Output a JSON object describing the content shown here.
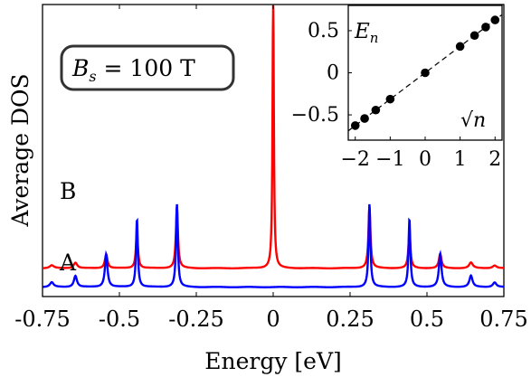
{
  "chart_data": [
    {
      "type": "line",
      "xlabel": "Energy [eV]",
      "ylabel": "Average DOS",
      "xlim": [
        -0.75,
        0.75
      ],
      "x_ticks": [
        "-0.75",
        "-0.5",
        "-0.25",
        "0",
        "0.25",
        "0.5",
        "0.75"
      ],
      "x_tick_values": [
        -0.75,
        -0.5,
        -0.25,
        0,
        0.25,
        0.5,
        0.75
      ],
      "annotation": "B_s = 100 T",
      "annotation_parts": {
        "symbol": "B",
        "subscript": "s",
        "rest": " = 100 T"
      },
      "grid": false,
      "series": [
        {
          "name": "B",
          "color": "#ff0000",
          "baseline": 0.2,
          "base_noise": 0.002,
          "peaks": [
            [
              0.0,
              2.95,
              0.0025
            ],
            [
              0.313,
              0.65,
              0.004
            ],
            [
              -0.313,
              0.65,
              0.004
            ],
            [
              0.443,
              0.38,
              0.004
            ],
            [
              -0.443,
              0.38,
              0.004
            ],
            [
              0.543,
              0.15,
              0.005
            ],
            [
              -0.543,
              0.15,
              0.005
            ],
            [
              0.643,
              0.06,
              0.007
            ],
            [
              -0.643,
              0.06,
              0.007
            ],
            [
              0.72,
              0.03,
              0.008
            ],
            [
              -0.72,
              0.03,
              0.008
            ]
          ]
        },
        {
          "name": "A",
          "color": "#0000ff",
          "baseline": 0.0,
          "base_noise": 0.002,
          "peaks": [
            [
              0.313,
              0.88,
              0.0035
            ],
            [
              -0.313,
              0.88,
              0.0035
            ],
            [
              0.443,
              0.72,
              0.0035
            ],
            [
              -0.443,
              0.72,
              0.0035
            ],
            [
              0.543,
              0.35,
              0.005
            ],
            [
              -0.543,
              0.35,
              0.005
            ],
            [
              0.643,
              0.12,
              0.006
            ],
            [
              -0.643,
              0.12,
              0.006
            ],
            [
              0.72,
              0.05,
              0.007
            ],
            [
              -0.72,
              0.05,
              0.007
            ]
          ]
        }
      ]
    },
    {
      "type": "scatter",
      "title": "E_n",
      "title_parts": {
        "symbol": "E",
        "subscript": "n"
      },
      "xlabel": "√n",
      "xlabel_parts": {
        "root": "√",
        "var": "n"
      },
      "xlim": [
        -2.2,
        2.2
      ],
      "ylim": [
        -0.8,
        0.8
      ],
      "x_ticks": [
        "−2",
        "−1",
        "0",
        "1",
        "2"
      ],
      "x_tick_values": [
        -2,
        -1,
        0,
        1,
        2
      ],
      "y_ticks": [
        "0.5",
        "0",
        "−0.5"
      ],
      "y_tick_values": [
        0.5,
        0,
        -0.5
      ],
      "points": {
        "x": [
          -2.0,
          -1.732,
          -1.414,
          -1.0,
          0.0,
          1.0,
          1.414,
          1.732,
          2.0
        ],
        "y": [
          -0.627,
          -0.543,
          -0.443,
          -0.313,
          0.0,
          0.313,
          0.443,
          0.543,
          0.627
        ]
      },
      "fit_line": {
        "x": [
          -2.2,
          2.2
        ],
        "y": [
          -0.69,
          0.69
        ]
      },
      "point_color": "#000000"
    }
  ]
}
